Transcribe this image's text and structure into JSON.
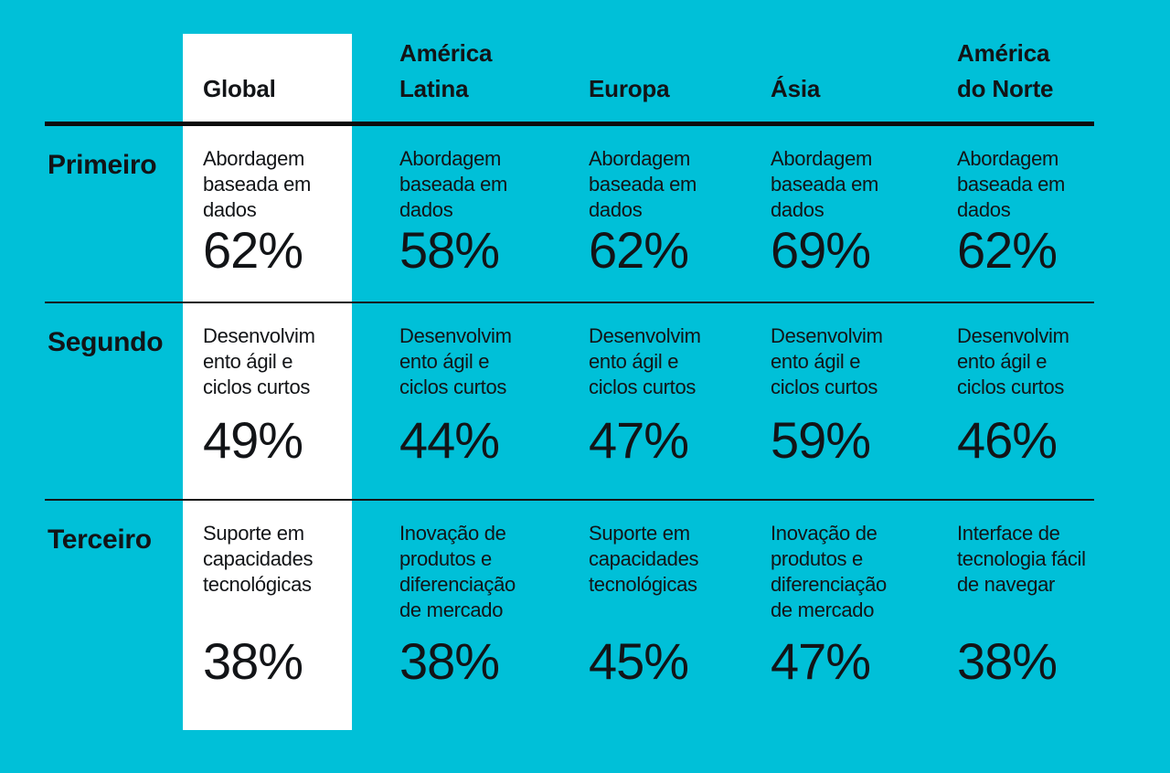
{
  "colors": {
    "background": "#00C0D8",
    "highlight_column_bg": "#FFFFFF",
    "text": "#121417",
    "rule_lines": "#0C0C0C"
  },
  "table": {
    "columns": [
      {
        "key": "global",
        "label": "Global",
        "highlighted": true
      },
      {
        "key": "america_latina",
        "label": "América\nLatina",
        "highlighted": false
      },
      {
        "key": "europa",
        "label": "Europa",
        "highlighted": false
      },
      {
        "key": "asia",
        "label": "Ásia",
        "highlighted": false
      },
      {
        "key": "america_do_norte",
        "label": "América\ndo Norte",
        "highlighted": false
      }
    ],
    "rows": [
      {
        "label": "Primeiro",
        "cells": [
          {
            "text": "Abordagem\nbaseada em\ndados",
            "value": "62%"
          },
          {
            "text": "Abordagem\nbaseada em\ndados",
            "value": "58%"
          },
          {
            "text": "Abordagem\nbaseada em\ndados",
            "value": "62%"
          },
          {
            "text": "Abordagem\nbaseada em\ndados",
            "value": "69%"
          },
          {
            "text": "Abordagem\nbaseada em\ndados",
            "value": "62%"
          }
        ]
      },
      {
        "label": "Segundo",
        "cells": [
          {
            "text": "Desenvolvim\nento ágil e\nciclos curtos",
            "value": "49%"
          },
          {
            "text": "Desenvolvim\nento ágil e\nciclos curtos",
            "value": "44%"
          },
          {
            "text": "Desenvolvim\nento ágil e\nciclos curtos",
            "value": "47%"
          },
          {
            "text": "Desenvolvim\nento ágil e\nciclos curtos",
            "value": "59%"
          },
          {
            "text": "Desenvolvim\nento ágil e\nciclos curtos",
            "value": "46%"
          }
        ]
      },
      {
        "label": "Terceiro",
        "cells": [
          {
            "text": "Suporte em\ncapacidades\ntecnológicas",
            "value": "38%"
          },
          {
            "text": "Inovação de\nprodutos e\ndiferenciação\nde mercado",
            "value": "38%"
          },
          {
            "text": "Suporte em\ncapacidades\ntecnológicas",
            "value": "45%"
          },
          {
            "text": "Inovação de\nprodutos e\ndiferenciação\nde mercado",
            "value": "47%"
          },
          {
            "text": "Interface de\ntecnologia fácil\nde navegar",
            "value": "38%"
          }
        ]
      }
    ]
  },
  "chart_data": {
    "type": "table",
    "title": "",
    "column_headers": [
      "Global",
      "América Latina",
      "Europa",
      "Ásia",
      "América do Norte"
    ],
    "row_headers": [
      "Primeiro",
      "Segundo",
      "Terceiro"
    ],
    "highlighted_column": "Global",
    "cells": [
      [
        {
          "column": "Global",
          "topic": "Abordagem baseada em dados",
          "pct": 62
        },
        {
          "column": "América Latina",
          "topic": "Abordagem baseada em dados",
          "pct": 58
        },
        {
          "column": "Europa",
          "topic": "Abordagem baseada em dados",
          "pct": 62
        },
        {
          "column": "Ásia",
          "topic": "Abordagem baseada em dados",
          "pct": 69
        },
        {
          "column": "América do Norte",
          "topic": "Abordagem baseada em dados",
          "pct": 62
        }
      ],
      [
        {
          "column": "Global",
          "topic": "Desenvolvimento ágil e ciclos curtos",
          "pct": 49
        },
        {
          "column": "América Latina",
          "topic": "Desenvolvimento ágil e ciclos curtos",
          "pct": 44
        },
        {
          "column": "Europa",
          "topic": "Desenvolvimento ágil e ciclos curtos",
          "pct": 47
        },
        {
          "column": "Ásia",
          "topic": "Desenvolvimento ágil e ciclos curtos",
          "pct": 59
        },
        {
          "column": "América do Norte",
          "topic": "Desenvolvimento ágil e ciclos curtos",
          "pct": 46
        }
      ],
      [
        {
          "column": "Global",
          "topic": "Suporte em capacidades tecnológicas",
          "pct": 38
        },
        {
          "column": "América Latina",
          "topic": "Inovação de produtos e diferenciação de mercado",
          "pct": 38
        },
        {
          "column": "Europa",
          "topic": "Suporte em capacidades tecnológicas",
          "pct": 45
        },
        {
          "column": "Ásia",
          "topic": "Inovação de produtos e diferenciação de mercado",
          "pct": 47
        },
        {
          "column": "América do Norte",
          "topic": "Interface de tecnologia fácil de navegar",
          "pct": 38
        }
      ]
    ]
  }
}
